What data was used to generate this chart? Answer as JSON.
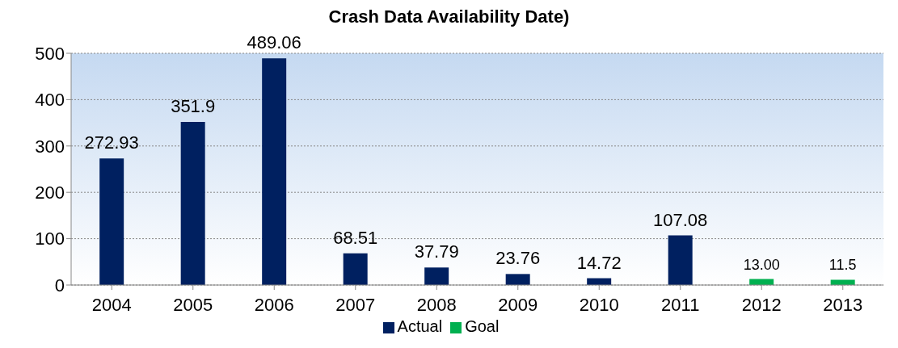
{
  "chart_data": {
    "type": "bar",
    "title": "Crash Data Availability Date)",
    "stacked": true,
    "categories": [
      "2004",
      "2005",
      "2006",
      "2007",
      "2008",
      "2009",
      "2010",
      "2011",
      "2012",
      "2013"
    ],
    "series": [
      {
        "name": "Actual",
        "color": "#002060",
        "values": [
          272.93,
          351.9,
          489.06,
          68.51,
          37.79,
          23.76,
          14.72,
          107.08,
          null,
          null
        ],
        "value_labels": [
          "272.93",
          "351.9",
          "489.06",
          "68.51",
          "37.79",
          "23.76",
          "14.72",
          "107.08",
          null,
          null
        ]
      },
      {
        "name": "Goal",
        "color": "#00b050",
        "values": [
          null,
          null,
          null,
          null,
          null,
          null,
          null,
          null,
          13.0,
          11.5
        ],
        "value_labels": [
          null,
          null,
          null,
          null,
          null,
          null,
          null,
          null,
          "13.00",
          "11.5"
        ]
      }
    ],
    "ylim": [
      0,
      500
    ],
    "yticks": [
      0,
      100,
      200,
      300,
      400,
      500
    ],
    "grid": "y",
    "legend": "bottom"
  }
}
